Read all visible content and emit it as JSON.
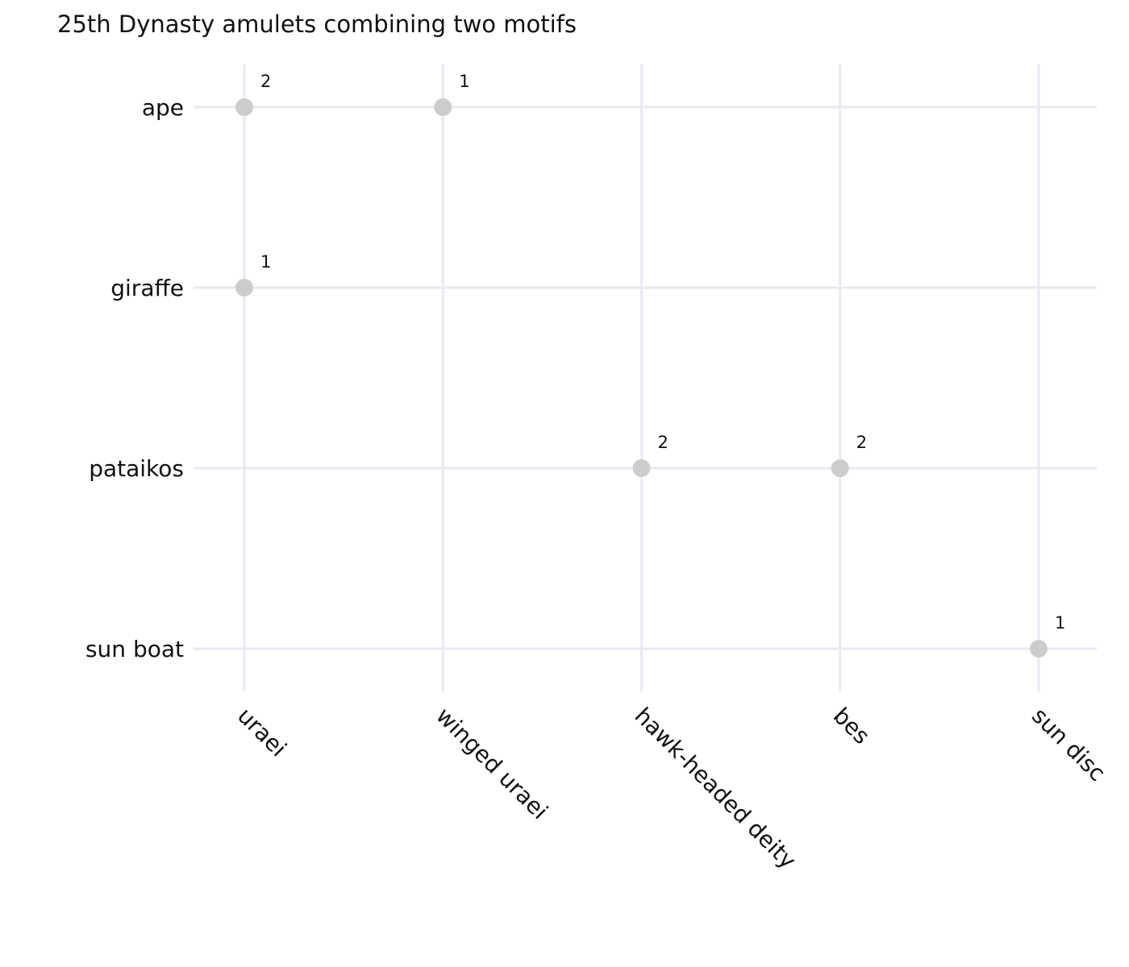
{
  "chart_data": {
    "type": "scatter",
    "title": "25th Dynasty amulets combining two motifs",
    "xlabel": "",
    "ylabel": "",
    "x_categories": [
      "uraei",
      "winged uraei",
      "hawk-headed deity",
      "bes",
      "sun disc"
    ],
    "y_categories": [
      "ape",
      "giraffe",
      "pataikos",
      "sun boat"
    ],
    "points": [
      {
        "x": "uraei",
        "y": "ape",
        "value": 2
      },
      {
        "x": "winged uraei",
        "y": "ape",
        "value": 1
      },
      {
        "x": "uraei",
        "y": "giraffe",
        "value": 1
      },
      {
        "x": "hawk-headed deity",
        "y": "pataikos",
        "value": 2
      },
      {
        "x": "bes",
        "y": "pataikos",
        "value": 2
      },
      {
        "x": "sun disc",
        "y": "sun boat",
        "value": 1
      }
    ],
    "marker_color": "#cccccc",
    "grid_color": "#e9e9f1",
    "grid": true,
    "legend": "none",
    "x_tick_rotation_deg": 45
  }
}
